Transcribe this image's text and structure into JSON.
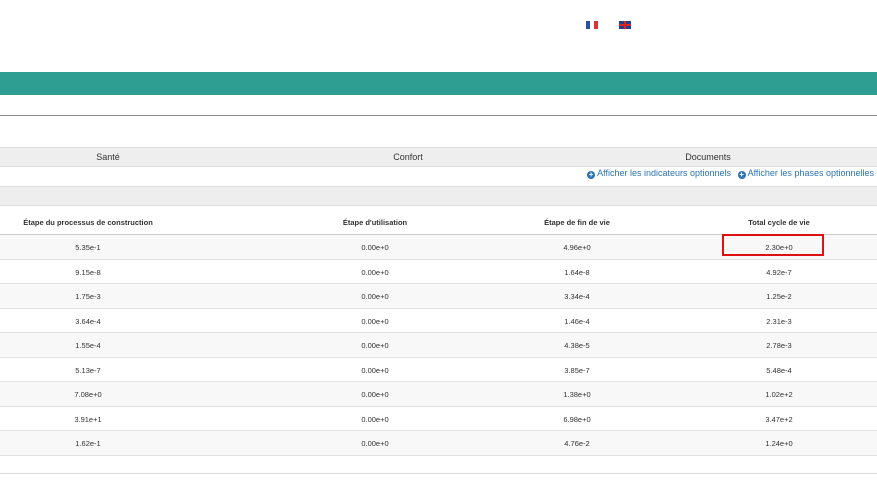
{
  "header": {
    "languages": [
      {
        "name": "fr-flag-icon"
      },
      {
        "name": "gb-flag-icon"
      }
    ],
    "accent_color": "#2e9e93"
  },
  "tabs": [
    "Santé",
    "Confort",
    "Documents"
  ],
  "links": {
    "optional_indicators": "Afficher les indicateurs optionnels",
    "optional_phases": "Afficher les phases optionnelles"
  },
  "table": {
    "columns": [
      "Étape du processus de construction",
      "Étape d'utilisation",
      "Étape de fin de vie",
      "Total cycle de vie"
    ],
    "rows": [
      [
        "5.35e-1",
        "0.00e+0",
        "4.96e+0",
        "2.30e+0"
      ],
      [
        "9.15e-8",
        "0.00e+0",
        "1.64e-8",
        "4.92e-7"
      ],
      [
        "1.75e-3",
        "0.00e+0",
        "3.34e-4",
        "1.25e-2"
      ],
      [
        "3.64e-4",
        "0.00e+0",
        "1.46e-4",
        "2.31e-3"
      ],
      [
        "1.55e-4",
        "0.00e+0",
        "4.38e-5",
        "2.78e-3"
      ],
      [
        "5.13e-7",
        "0.00e+0",
        "3.85e-7",
        "5.48e-4"
      ],
      [
        "7.08e+0",
        "0.00e+0",
        "1.38e+0",
        "1.02e+2"
      ],
      [
        "3.91e+1",
        "0.00e+0",
        "6.98e+0",
        "3.47e+2"
      ],
      [
        "1.62e-1",
        "0.00e+0",
        "4.76e-2",
        "1.24e+0"
      ]
    ],
    "highlight_color": "#e01010"
  }
}
